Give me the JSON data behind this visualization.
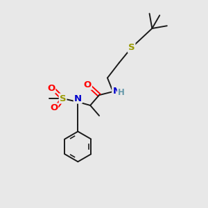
{
  "bg_color": "#e8e8e8",
  "bond_color": "#1a1a1a",
  "atom_colors": {
    "O": "#ff0000",
    "N": "#0000cc",
    "S": "#999900",
    "H": "#6699aa",
    "C": "#1a1a1a"
  },
  "figsize": [
    3.0,
    3.0
  ],
  "dpi": 100,
  "bond_lw": 1.4,
  "font_size": 9.5
}
